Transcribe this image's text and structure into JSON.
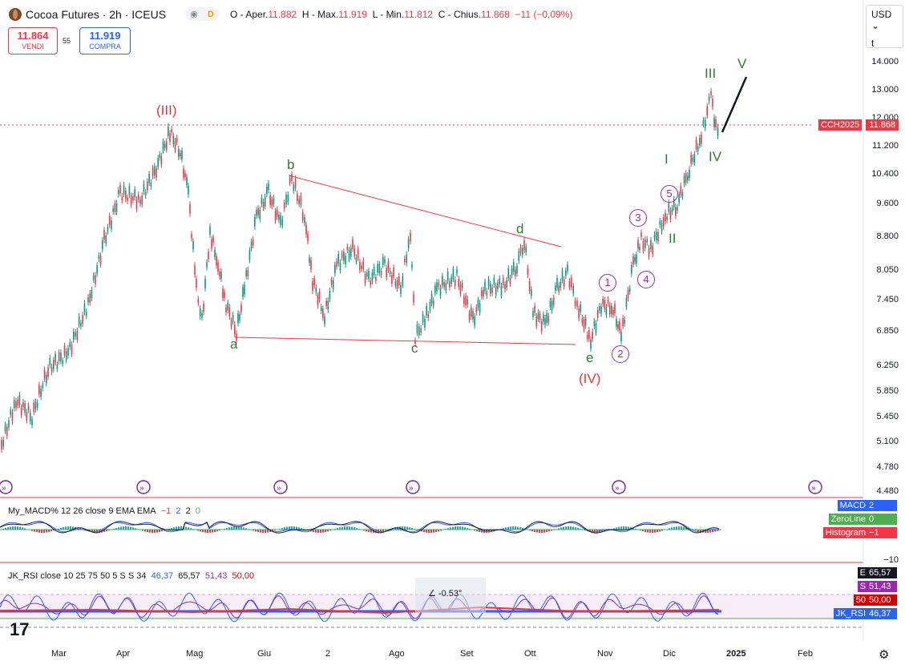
{
  "header": {
    "symbol_title": "Cocoa Futures · 2h · ICEUS",
    "ohlc_open_label": "O - Aper.",
    "ohlc_open": "11.882",
    "ohlc_high_label": "H - Max.",
    "ohlc_high": "11.919",
    "ohlc_low_label": "L - Min.",
    "ohlc_low": "11.812",
    "ohlc_close_label": "C - Chius.",
    "ohlc_close": "11.868",
    "change": "−11 (−0,09%)",
    "pill_d": "D"
  },
  "trade": {
    "sell_price": "11.864",
    "sell_label": "VENDI",
    "spread": "55",
    "buy_price": "11.919",
    "buy_label": "COMPRA"
  },
  "currency": {
    "selected": "USD",
    "unit": "t"
  },
  "price_axis": [
    "14.000",
    "13.000",
    "12.000",
    "11.200",
    "10.400",
    "9.600",
    "8.800",
    "8.050",
    "7.450",
    "6.850",
    "6.250",
    "5.850",
    "5.450",
    "5.100",
    "4.780",
    "4.480"
  ],
  "symbol_tag": {
    "name": "CCH2025",
    "price": "11.868"
  },
  "time_axis": [
    "Mar",
    "Apr",
    "Mag",
    "Giu",
    "2",
    "Ago",
    "Set",
    "Ott",
    "Nov",
    "Dic",
    "2025",
    "Feb"
  ],
  "wave_labels": {
    "big_III": "(III)",
    "big_IV": "(IV)",
    "a": "a",
    "b": "b",
    "c": "c",
    "d": "d",
    "e": "e",
    "I": "I",
    "II": "II",
    "III": "III",
    "IV": "IV",
    "V": "V",
    "c1": "1",
    "c2": "2",
    "c3": "3",
    "c4": "4",
    "c5": "5"
  },
  "macd": {
    "legend": "My_MACD% 12 26 close 9 EMA EMA",
    "v1": "−1",
    "v2": "2",
    "v3": "2",
    "v4": "0",
    "tags": [
      {
        "label": "MACD",
        "value": "2",
        "color": "#2962ff"
      },
      {
        "label": "ZeroLine",
        "value": "0",
        "color": "#4caf50"
      },
      {
        "label": "Histogram",
        "value": "−1",
        "color": "#f23645"
      }
    ],
    "axis_bottom": "−10"
  },
  "rsi": {
    "legend": "JK_RSI close 10 25 75 50 5 S S 34",
    "v1": "46,37",
    "v2": "65,57",
    "v3": "51,43",
    "v4": "50,00",
    "tags": [
      {
        "label": "E",
        "value": "65,57",
        "color": "#131722"
      },
      {
        "label": "S",
        "value": "51,43",
        "color": "#9c27b0"
      },
      {
        "label": "50",
        "value": "50,00",
        "color": "#d50000"
      },
      {
        "label": "JK_RSI",
        "value": "46,37",
        "color": "#2962ff"
      }
    ],
    "angle_label": "-0.53°"
  },
  "colors": {
    "up": "#089981",
    "down": "#f23645",
    "wave_green": "#2e7d32",
    "wave_red": "#e53935",
    "circle": "#9c27b0"
  }
}
